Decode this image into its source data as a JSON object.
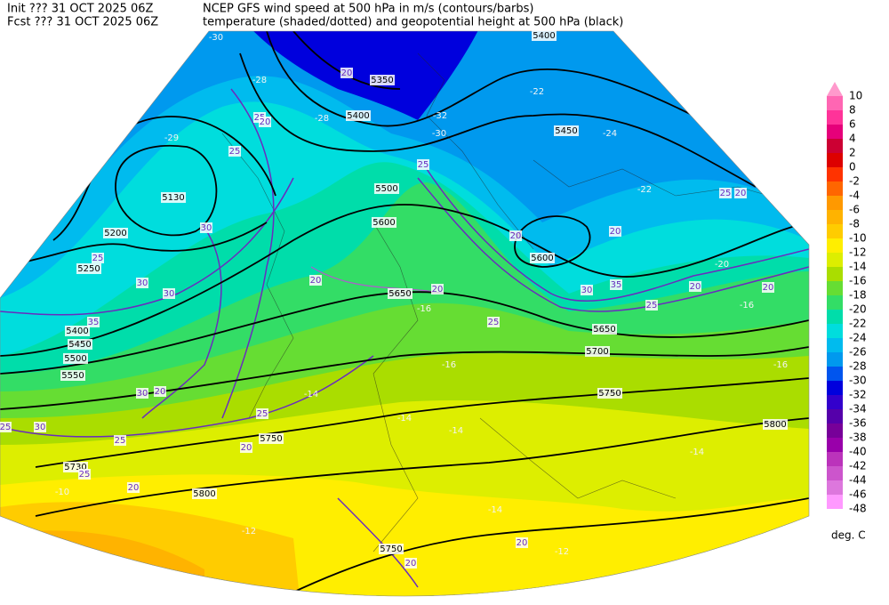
{
  "header": {
    "init": "Init  ??? 31 OCT 2025 06Z",
    "fcst": "Fcst ??? 31 OCT 2025 06Z",
    "title": "NCEP GFS wind speed at 500 hPa in m/s (contours/barbs)",
    "subtitle": "temperature (shaded/dotted) and geopotential height at 500 hPa (black)"
  },
  "legend": {
    "labels": [
      10,
      8,
      6,
      4,
      2,
      0,
      -2,
      -4,
      -6,
      -8,
      -10,
      -12,
      -14,
      -16,
      -18,
      -20,
      -22,
      -24,
      -26,
      -28,
      -30,
      -32,
      -34,
      -36,
      -38,
      -40,
      -42,
      -44,
      -46,
      -48
    ],
    "colors": [
      "#ff99cc",
      "#ff66b3",
      "#ff3399",
      "#e6007a",
      "#cc0033",
      "#dd0000",
      "#ff3300",
      "#ff6600",
      "#ff9900",
      "#ffb300",
      "#ffcc00",
      "#ffee00",
      "#ddee00",
      "#aadd00",
      "#66dd33",
      "#33dd66",
      "#00ddaa",
      "#00dddd",
      "#00bbee",
      "#0099ee",
      "#0055ee",
      "#0000dd",
      "#3300cc",
      "#5500aa",
      "#770099",
      "#9900aa",
      "#bb33bb",
      "#cc55cc",
      "#dd77dd",
      "#ff99ff"
    ],
    "unit": "deg. C"
  },
  "map": {
    "height_labels": [
      5400,
      5350,
      5400,
      5450,
      5500,
      5600,
      5130,
      5200,
      5250,
      5400,
      5450,
      5500,
      5550,
      5650,
      5600,
      5750,
      5800,
      5750,
      5800,
      5750,
      5700,
      5650,
      5730
    ],
    "temperature_labels": [
      -30,
      -28,
      -28,
      -29,
      -32,
      -30,
      -24,
      -22,
      -22,
      -20,
      -16,
      -16,
      -14,
      -14,
      -14,
      -12,
      -12,
      -14,
      -16,
      -10,
      -14,
      -16
    ],
    "wind_labels": [
      20,
      25,
      20,
      25,
      20,
      30,
      30,
      30,
      25,
      35,
      30,
      20,
      25,
      25,
      30,
      25,
      20,
      20,
      25,
      20,
      20,
      25,
      25,
      35,
      30,
      20,
      20,
      25,
      20,
      20,
      20,
      25,
      20
    ]
  }
}
